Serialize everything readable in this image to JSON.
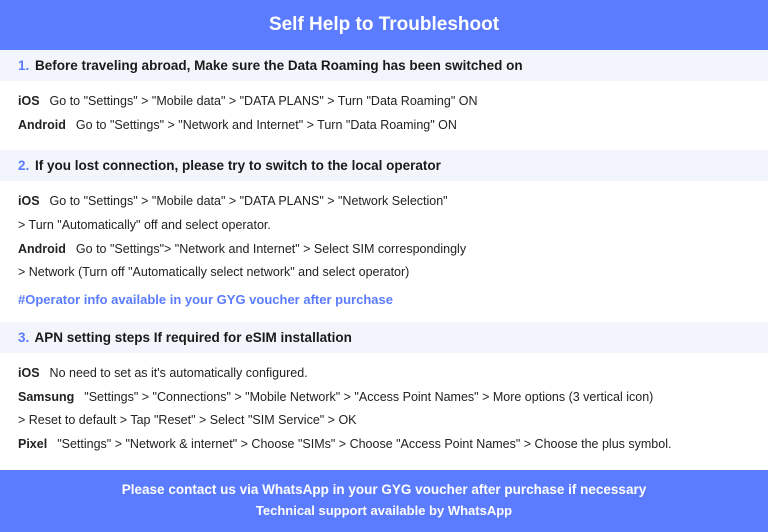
{
  "header": {
    "title": "Self Help to Troubleshoot"
  },
  "sections": [
    {
      "num": "1.",
      "title_lead": "Before traveling abroad,",
      "title_rest": " Make sure the Data Roaming has been switched on",
      "rows": [
        {
          "os": "iOS",
          "text": "Go to \"Settings\" > \"Mobile data\" > \"DATA PLANS\" > Turn \"Data Roaming\" ON",
          "cont": ""
        },
        {
          "os": "Android",
          "text": "Go to \"Settings\" > \"Network and Internet\" > Turn \"Data Roaming\" ON",
          "cont": ""
        }
      ],
      "note": ""
    },
    {
      "num": "2.",
      "title_lead": "If you lost connection, please try to switch to the local operator",
      "title_rest": "",
      "rows": [
        {
          "os": "iOS",
          "text": "Go to \"Settings\" > \"Mobile data\" > \"DATA PLANS\" > \"Network Selection\"",
          "cont": "> Turn \"Automatically\" off and select operator."
        },
        {
          "os": "Android",
          "text": "Go to \"Settings\">  \"Network and Internet\" > Select SIM correspondingly",
          "cont": "> Network (Turn off \"Automatically select network\" and select operator)"
        }
      ],
      "note": "#Operator info available in your GYG voucher after purchase"
    },
    {
      "num": "3.",
      "title_lead": "APN setting steps If required for eSIM installation",
      "title_rest": "",
      "rows": [
        {
          "os": "iOS",
          "text": "No need to set as it's automatically configured.",
          "cont": ""
        },
        {
          "os": "Samsung",
          "text": "\"Settings\" > \"Connections\" > \"Mobile Network\" > \"Access Point Names\" > More options (3 vertical icon)",
          "cont": "> Reset to default > Tap \"Reset\" > Select \"SIM Service\" > OK"
        },
        {
          "os": "Pixel",
          "text": "\"Settings\" > \"Network & internet\" > Choose \"SIMs\" > Choose \"Access Point Names\" > Choose the plus symbol.",
          "cont": ""
        }
      ],
      "note": ""
    }
  ],
  "footer": {
    "line1": "Please contact us via WhatsApp  in your GYG voucher after purchase if necessary",
    "line2": "Technical support available by WhatsApp"
  },
  "colors": {
    "primary": "#5b7cff",
    "section_bg": "#f2f5fb",
    "text": "#1a1a1a"
  }
}
